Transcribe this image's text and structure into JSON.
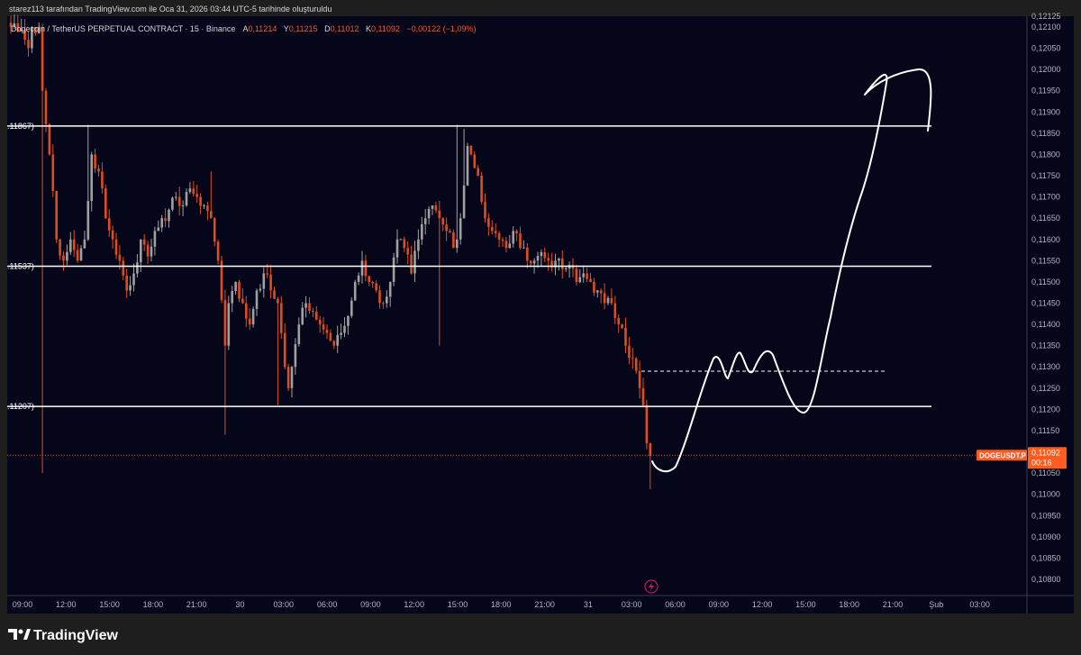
{
  "header": {
    "author_line": "starez113 tarafından TradingView.com ile Oca 31, 2026 03:44 UTC-5 tarihinde oluşturuldu"
  },
  "legend": {
    "symbol": "Dogecoin / TetherUS PERPETUAL CONTRACT · 15 · Binance",
    "open_label": "A",
    "open": "0,11214",
    "high_label": "Y",
    "high": "0,11215",
    "low_label": "D",
    "low": "0,11012",
    "close_label": "K",
    "close": "0,11092",
    "change": "−0,00122 (−1,09%)"
  },
  "price_tag": {
    "symbol": "DOGEUSDT.P",
    "price": "0,11092",
    "countdown": "00:16"
  },
  "footer": {
    "brand": "TradingView"
  },
  "colors": {
    "background": "#06061a",
    "frame": "#1e1e1e",
    "up": "#a0a0a0",
    "down": "#e04d1b",
    "accent": "#ff5a1f",
    "level_line": "#ffffff"
  },
  "chart_data": {
    "type": "candlestick",
    "y_range": [
      0.1078,
      0.1213
    ],
    "y_ticks": [
      "0,12125",
      "0,12100",
      "0,12050",
      "0,12000",
      "0,11950",
      "0,11900",
      "0,11850",
      "0,11800",
      "0,11750",
      "0,11700",
      "0,11650",
      "0,11600",
      "0,11550",
      "0,11500",
      "0,11450",
      "0,11400",
      "0,11350",
      "0,11300",
      "0,11250",
      "0,11200",
      "0,11150",
      "0,11100",
      "0,11050",
      "0,11000",
      "0,10950",
      "0,10900",
      "0,10850",
      "0,10800"
    ],
    "x_ticks": [
      "09:00",
      "12:00",
      "15:00",
      "18:00",
      "21:00",
      "30",
      "03:00",
      "06:00",
      "09:00",
      "12:00",
      "15:00",
      "18:00",
      "21:00",
      "31",
      "03:00",
      "06:00",
      "09:00",
      "12:00",
      "15:00",
      "18:00",
      "21:00",
      "Şub",
      "03:00"
    ],
    "levels": [
      {
        "price": 0.11867,
        "label": ".11867)"
      },
      {
        "price": 0.11537,
        "label": ".11537)"
      },
      {
        "price": 0.11207,
        "label": ".11207)"
      }
    ],
    "current_price": 0.11092,
    "dashed_level": 0.1129,
    "anchors": [
      [
        0,
        0.121
      ],
      [
        2,
        0.1209
      ],
      [
        4,
        0.1207
      ],
      [
        5,
        0.1205
      ],
      [
        6,
        0.121
      ],
      [
        8,
        0.121
      ],
      [
        9,
        0.1195
      ],
      [
        11,
        0.118
      ],
      [
        13,
        0.116
      ],
      [
        15,
        0.1155
      ],
      [
        17,
        0.116
      ],
      [
        19,
        0.1155
      ],
      [
        21,
        0.116
      ],
      [
        23,
        0.118
      ],
      [
        25,
        0.1176
      ],
      [
        27,
        0.1165
      ],
      [
        29,
        0.116
      ],
      [
        31,
        0.1155
      ],
      [
        33,
        0.1148
      ],
      [
        35,
        0.1152
      ],
      [
        37,
        0.116
      ],
      [
        39,
        0.1156
      ],
      [
        41,
        0.1162
      ],
      [
        43,
        0.1165
      ],
      [
        45,
        0.1167
      ],
      [
        47,
        0.117
      ],
      [
        49,
        0.1168
      ],
      [
        51,
        0.1172
      ],
      [
        53,
        0.117
      ],
      [
        55,
        0.1168
      ],
      [
        57,
        0.1165
      ],
      [
        59,
        0.1155
      ],
      [
        61,
        0.1135
      ],
      [
        62,
        0.1145
      ],
      [
        64,
        0.115
      ],
      [
        66,
        0.1145
      ],
      [
        68,
        0.114
      ],
      [
        70,
        0.1148
      ],
      [
        72,
        0.1152
      ],
      [
        74,
        0.1148
      ],
      [
        76,
        0.1145
      ],
      [
        78,
        0.113
      ],
      [
        79,
        0.1125
      ],
      [
        80,
        0.113
      ],
      [
        82,
        0.114
      ],
      [
        84,
        0.1145
      ],
      [
        86,
        0.1143
      ],
      [
        88,
        0.114
      ],
      [
        90,
        0.1138
      ],
      [
        92,
        0.1135
      ],
      [
        94,
        0.1138
      ],
      [
        96,
        0.1142
      ],
      [
        98,
        0.115
      ],
      [
        100,
        0.1155
      ],
      [
        102,
        0.115
      ],
      [
        104,
        0.1148
      ],
      [
        106,
        0.1145
      ],
      [
        108,
        0.115
      ],
      [
        110,
        0.116
      ],
      [
        112,
        0.1158
      ],
      [
        114,
        0.1152
      ],
      [
        116,
        0.116
      ],
      [
        118,
        0.1165
      ],
      [
        120,
        0.1168
      ],
      [
        122,
        0.1165
      ],
      [
        124,
        0.1162
      ],
      [
        126,
        0.1158
      ],
      [
        127,
        0.116
      ],
      [
        128,
        0.1165
      ],
      [
        130,
        0.1182
      ],
      [
        131,
        0.118
      ],
      [
        133,
        0.1175
      ],
      [
        135,
        0.1165
      ],
      [
        137,
        0.1162
      ],
      [
        139,
        0.116
      ],
      [
        141,
        0.1158
      ],
      [
        143,
        0.1162
      ],
      [
        145,
        0.1158
      ],
      [
        147,
        0.1155
      ],
      [
        149,
        0.1155
      ],
      [
        151,
        0.1157
      ],
      [
        153,
        0.1155
      ],
      [
        155,
        0.1155
      ],
      [
        157,
        0.1153
      ],
      [
        159,
        0.1154
      ],
      [
        161,
        0.115
      ],
      [
        163,
        0.1152
      ],
      [
        165,
        0.115
      ],
      [
        167,
        0.1148
      ],
      [
        169,
        0.1145
      ],
      [
        171,
        0.1145
      ],
      [
        173,
        0.114
      ],
      [
        175,
        0.1135
      ],
      [
        177,
        0.1132
      ],
      [
        179,
        0.1125
      ],
      [
        180,
        0.1121
      ],
      [
        181,
        0.1112
      ],
      [
        182,
        0.1109
      ]
    ],
    "wicks": [
      {
        "i": 9,
        "low": 0.1105
      },
      {
        "i": 22,
        "high": 0.1187
      },
      {
        "i": 57,
        "high": 0.1176
      },
      {
        "i": 61,
        "low": 0.1114
      },
      {
        "i": 76,
        "low": 0.1121
      },
      {
        "i": 122,
        "low": 0.1135
      },
      {
        "i": 127,
        "high": 0.1187
      },
      {
        "i": 129,
        "high": 0.1186
      },
      {
        "i": 182,
        "low": 0.11012
      }
    ]
  }
}
